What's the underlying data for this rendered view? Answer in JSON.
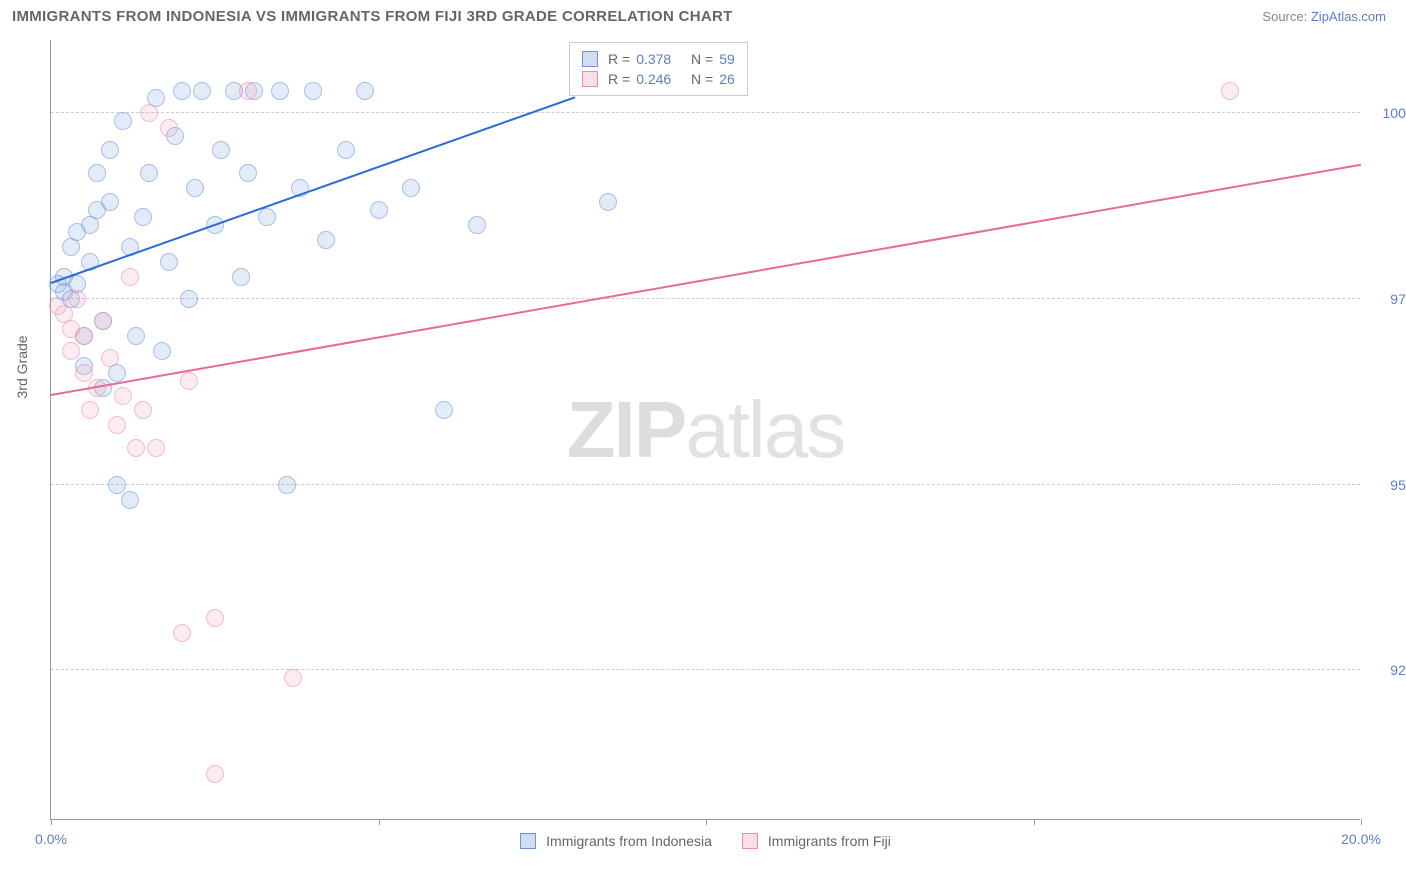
{
  "header": {
    "title": "IMMIGRANTS FROM INDONESIA VS IMMIGRANTS FROM FIJI 3RD GRADE CORRELATION CHART",
    "source_label": "Source:",
    "source_name": "ZipAtlas.com"
  },
  "watermark": {
    "part1": "ZIP",
    "part2": "atlas"
  },
  "chart": {
    "type": "scatter",
    "ylabel": "3rd Grade",
    "xlim": [
      0.0,
      20.0
    ],
    "ylim": [
      90.5,
      101.0
    ],
    "xticks": [
      0.0,
      5.0,
      10.0,
      15.0,
      20.0
    ],
    "xtick_labels": [
      "0.0%",
      "",
      "",
      "",
      "20.0%"
    ],
    "yticks": [
      92.5,
      95.0,
      97.5,
      100.0
    ],
    "ytick_labels": [
      "92.5%",
      "95.0%",
      "97.5%",
      "100.0%"
    ],
    "grid_color": "#cccccc",
    "axis_color": "#999999",
    "background_color": "#ffffff",
    "marker_radius": 9,
    "series": [
      {
        "name": "Immigrants from Indonesia",
        "color_fill": "rgba(120,160,220,0.35)",
        "color_stroke": "#6a95d8",
        "trend_color": "#2b6bd8",
        "R": 0.378,
        "N": 59,
        "trend_line": {
          "x0": 0.0,
          "y0": 97.7,
          "x1": 8.0,
          "y1": 100.2
        },
        "points": [
          [
            0.1,
            97.7
          ],
          [
            0.2,
            97.8
          ],
          [
            0.2,
            97.6
          ],
          [
            0.3,
            97.5
          ],
          [
            0.3,
            98.2
          ],
          [
            0.4,
            97.7
          ],
          [
            0.4,
            98.4
          ],
          [
            0.5,
            96.6
          ],
          [
            0.5,
            97.0
          ],
          [
            0.6,
            98.5
          ],
          [
            0.6,
            98.0
          ],
          [
            0.7,
            98.7
          ],
          [
            0.7,
            99.2
          ],
          [
            0.8,
            96.3
          ],
          [
            0.8,
            97.2
          ],
          [
            0.9,
            99.5
          ],
          [
            0.9,
            98.8
          ],
          [
            1.0,
            96.5
          ],
          [
            1.0,
            95.0
          ],
          [
            1.1,
            99.9
          ],
          [
            1.2,
            94.8
          ],
          [
            1.2,
            98.2
          ],
          [
            1.3,
            97.0
          ],
          [
            1.4,
            98.6
          ],
          [
            1.5,
            99.2
          ],
          [
            1.6,
            100.2
          ],
          [
            1.7,
            96.8
          ],
          [
            1.8,
            98.0
          ],
          [
            1.9,
            99.7
          ],
          [
            2.0,
            100.3
          ],
          [
            2.1,
            97.5
          ],
          [
            2.2,
            99.0
          ],
          [
            2.3,
            100.3
          ],
          [
            2.5,
            98.5
          ],
          [
            2.6,
            99.5
          ],
          [
            2.8,
            100.3
          ],
          [
            2.9,
            97.8
          ],
          [
            3.0,
            99.2
          ],
          [
            3.1,
            100.3
          ],
          [
            3.3,
            98.6
          ],
          [
            3.5,
            100.3
          ],
          [
            3.6,
            95.0
          ],
          [
            3.8,
            99.0
          ],
          [
            4.0,
            100.3
          ],
          [
            4.2,
            98.3
          ],
          [
            4.5,
            99.5
          ],
          [
            4.8,
            100.3
          ],
          [
            5.0,
            98.7
          ],
          [
            5.5,
            99.0
          ],
          [
            6.0,
            96.0
          ],
          [
            6.5,
            98.5
          ],
          [
            8.5,
            98.8
          ]
        ]
      },
      {
        "name": "Immigrants from Fiji",
        "color_fill": "rgba(240,150,180,0.30)",
        "color_stroke": "#e88fb0",
        "trend_color": "#e86a9a",
        "R": 0.246,
        "N": 26,
        "trend_line": {
          "x0": 0.0,
          "y0": 96.2,
          "x1": 20.0,
          "y1": 99.3
        },
        "points": [
          [
            0.1,
            97.4
          ],
          [
            0.2,
            97.3
          ],
          [
            0.3,
            97.1
          ],
          [
            0.3,
            96.8
          ],
          [
            0.4,
            97.5
          ],
          [
            0.5,
            96.5
          ],
          [
            0.5,
            97.0
          ],
          [
            0.6,
            96.0
          ],
          [
            0.7,
            96.3
          ],
          [
            0.8,
            97.2
          ],
          [
            0.9,
            96.7
          ],
          [
            1.0,
            95.8
          ],
          [
            1.1,
            96.2
          ],
          [
            1.2,
            97.8
          ],
          [
            1.3,
            95.5
          ],
          [
            1.4,
            96.0
          ],
          [
            1.5,
            100.0
          ],
          [
            1.6,
            95.5
          ],
          [
            1.8,
            99.8
          ],
          [
            2.0,
            93.0
          ],
          [
            2.1,
            96.4
          ],
          [
            2.5,
            93.2
          ],
          [
            2.5,
            91.1
          ],
          [
            3.7,
            92.4
          ],
          [
            3.0,
            100.3
          ],
          [
            18.0,
            100.3
          ]
        ]
      }
    ],
    "legend_labels": {
      "R_prefix": "R =",
      "N_prefix": "N ="
    }
  }
}
